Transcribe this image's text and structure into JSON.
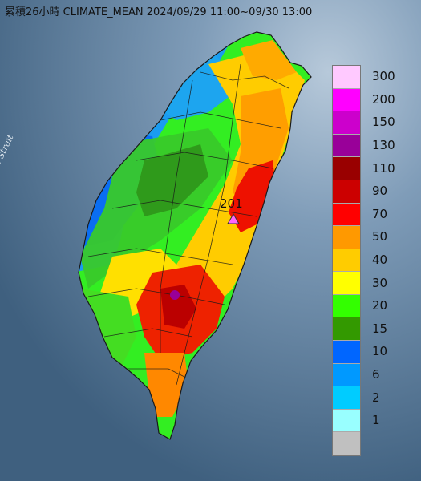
{
  "map": {
    "title": "累積26小時 CLIMATE_MEAN 2024/09/29 11:00~09/30 13:00",
    "water_label": "Formosa Strait",
    "peak_value": "201",
    "colors": {
      "sea": "#4f6f8e",
      "sea_light": "#8aa8c4",
      "land_outline": "#1a1a1a"
    }
  },
  "legend": {
    "title": "",
    "items": [
      {
        "label": "300",
        "color": "#ffc9ff"
      },
      {
        "label": "200",
        "color": "#ff00ff"
      },
      {
        "label": "150",
        "color": "#cc00cc"
      },
      {
        "label": "130",
        "color": "#990099"
      },
      {
        "label": "110",
        "color": "#990000"
      },
      {
        "label": "90",
        "color": "#cc0000"
      },
      {
        "label": "70",
        "color": "#ff0000"
      },
      {
        "label": "50",
        "color": "#ff9900"
      },
      {
        "label": "40",
        "color": "#ffcc00"
      },
      {
        "label": "30",
        "color": "#ffff00"
      },
      {
        "label": "20",
        "color": "#33ff00"
      },
      {
        "label": "15",
        "color": "#339900"
      },
      {
        "label": "10",
        "color": "#0066ff"
      },
      {
        "label": "6",
        "color": "#0099ff"
      },
      {
        "label": "2",
        "color": "#00ccff"
      },
      {
        "label": "1",
        "color": "#99ffff"
      },
      {
        "label": "",
        "color": "#c0c0c0"
      }
    ]
  }
}
